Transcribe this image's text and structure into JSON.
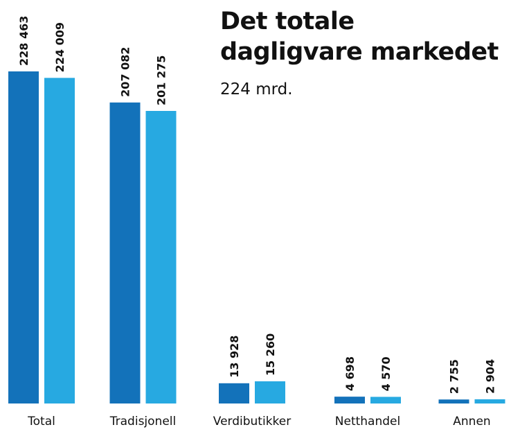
{
  "chart_data": {
    "type": "bar",
    "title": [
      "Det totale",
      "dagligvare markedet"
    ],
    "subtitle": "224 mrd.",
    "categories": [
      "Total",
      "Tradisjonell",
      "Verdibutikker",
      "Netthandel",
      "Annen"
    ],
    "series": [
      {
        "color": "#1372ba",
        "values": [
          228463,
          207082,
          13928,
          4698,
          2755
        ],
        "value_labels": [
          "228 463",
          "207 082",
          "13 928",
          "4 698",
          "2 755"
        ]
      },
      {
        "color": "#27a9e1",
        "values": [
          224009,
          201275,
          15260,
          4570,
          2904
        ],
        "value_labels": [
          "224 009",
          "201 275",
          "15 260",
          "4 570",
          "2 904"
        ]
      }
    ]
  }
}
